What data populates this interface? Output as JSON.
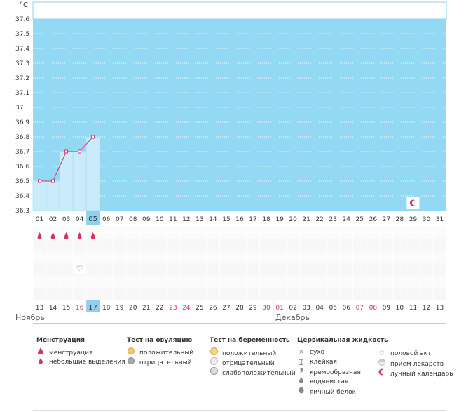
{
  "chart_data": {
    "type": "line",
    "unit_label": "°C",
    "ylim": [
      36.3,
      37.6
    ],
    "y_ticks": [
      "37.6",
      "37.5",
      "37.4",
      "37.3",
      "37.2",
      "37.1",
      "37",
      "36.9",
      "36.8",
      "36.7",
      "36.6",
      "36.5",
      "36.4",
      "36.3"
    ],
    "cycle_days": [
      "01",
      "02",
      "03",
      "04",
      "05",
      "06",
      "07",
      "08",
      "09",
      "10",
      "11",
      "12",
      "13",
      "14",
      "15",
      "16",
      "17",
      "18",
      "19",
      "20",
      "21",
      "22",
      "23",
      "24",
      "25",
      "26",
      "27",
      "28",
      "29",
      "30",
      "31"
    ],
    "current_day_index": 4,
    "temperatures": [
      36.5,
      36.5,
      36.7,
      36.7,
      36.8
    ],
    "menstruation_days": [
      0,
      1,
      2,
      3,
      4
    ],
    "intercourse_days": [
      3
    ],
    "lunar_day_index": 28,
    "dates": [
      "13",
      "14",
      "15",
      "16",
      "17",
      "18",
      "19",
      "20",
      "21",
      "22",
      "23",
      "24",
      "25",
      "26",
      "27",
      "28",
      "29",
      "30",
      "01",
      "02",
      "03",
      "04",
      "05",
      "06",
      "07",
      "08",
      "09",
      "10",
      "11",
      "12",
      "13"
    ],
    "highlighted_dates": [
      3,
      10,
      11,
      17,
      18,
      24,
      25
    ],
    "today_date_index": 4,
    "month_break_index": 18,
    "months": [
      "Ноябрь",
      "Декабрь"
    ],
    "colors": {
      "chart_bg": "#94d9f3",
      "filled_bar": "#c9ebfa",
      "line": "#d2336a",
      "accent_text": "#d2336a",
      "today_bg": "#8fd0ee"
    }
  },
  "legend": {
    "menstruation": {
      "title": "Менструация",
      "items": [
        "менструация",
        "небольшие выделения"
      ]
    },
    "ovulation": {
      "title": "Тест на овуляцию",
      "items": [
        "положительный",
        "отрицательный"
      ]
    },
    "pregnancy": {
      "title": "Тест на беременность",
      "items": [
        "положительный",
        "отрицательный",
        "слабоположительный"
      ]
    },
    "cervical": {
      "title": "Цервикальная жидкость",
      "items": [
        "сухо",
        "клейкая",
        "кремообразная",
        "водянистая",
        "яичный белок"
      ]
    },
    "other": {
      "items": [
        "половой акт",
        "прием лекарств",
        "лунный календарь"
      ]
    }
  },
  "icons": {
    "menstruation": "drop-icon",
    "spotting": "small-drop-icon",
    "intercourse": "heart-icon",
    "lunar": "moon-icon"
  }
}
